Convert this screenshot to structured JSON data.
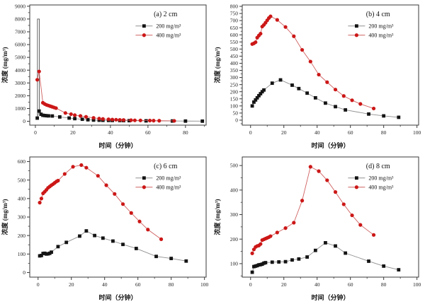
{
  "style": {
    "background": "#ffffff",
    "frame_color": "#3a3a3a",
    "text_color": "#1f1f1f",
    "series_200": {
      "marker": "square",
      "marker_color": "#141414",
      "line_color": "#8f8f8f"
    },
    "series_400": {
      "marker": "circle",
      "marker_color": "#cc1717",
      "line_color": "#d06060"
    }
  },
  "legend_labels": [
    "200 mg/m³",
    "400 mg/m³"
  ],
  "chart_data": [
    {
      "id": "a",
      "type": "line",
      "title": "(a) 2 cm",
      "xlabel": "时间（分钟）",
      "ylabel": "浓度 (mg/m³)",
      "xlim": [
        -3,
        91
      ],
      "ylim": [
        -300,
        9100
      ],
      "xticks": [
        0,
        20,
        40,
        60,
        80
      ],
      "yticks": [
        0,
        1000,
        2000,
        3000,
        4000,
        5000,
        6000,
        7000,
        8000,
        9000
      ],
      "legend_position": "upper-right",
      "grid": false,
      "extra_lines": [
        {
          "name": "initial-spike",
          "color": "#555555",
          "points": [
            [
              1.1,
              250
            ],
            [
              1.1,
              8000
            ],
            [
              2.1,
              8000
            ],
            [
              2.1,
              800
            ]
          ]
        }
      ],
      "series": [
        {
          "name": "200 mg/m³",
          "marker": "square",
          "points": [
            [
              1,
              250
            ],
            [
              2,
              800
            ],
            [
              3,
              550
            ],
            [
              4,
              470
            ],
            [
              5,
              450
            ],
            [
              6,
              435
            ],
            [
              7,
              425
            ],
            [
              9,
              415
            ],
            [
              13,
              340
            ],
            [
              18,
              255
            ],
            [
              21,
              210
            ],
            [
              25,
              160
            ],
            [
              28,
              120
            ],
            [
              31,
              95
            ],
            [
              34,
              85
            ],
            [
              36,
              78
            ],
            [
              39,
              70
            ],
            [
              41,
              65
            ],
            [
              45,
              60
            ],
            [
              47,
              55
            ],
            [
              50,
              50
            ],
            [
              59,
              35
            ],
            [
              73,
              25
            ],
            [
              80,
              18
            ],
            [
              89,
              12
            ]
          ]
        },
        {
          "name": "400 mg/m³",
          "marker": "circle",
          "points": [
            [
              1,
              3250
            ],
            [
              2,
              3900
            ],
            [
              4,
              1450
            ],
            [
              5,
              1350
            ],
            [
              6,
              1280
            ],
            [
              7,
              1230
            ],
            [
              8,
              1180
            ],
            [
              9,
              1130
            ],
            [
              10,
              1080
            ],
            [
              11,
              1030
            ],
            [
              16,
              650
            ],
            [
              19,
              560
            ],
            [
              21,
              480
            ],
            [
              24,
              420
            ],
            [
              27,
              350
            ],
            [
              31,
              270
            ],
            [
              34,
              215
            ],
            [
              36,
              185
            ],
            [
              39,
              160
            ],
            [
              41,
              140
            ],
            [
              43,
              125
            ],
            [
              45,
              110
            ],
            [
              47,
              100
            ],
            [
              51,
              85
            ],
            [
              53,
              78
            ],
            [
              56,
              68
            ],
            [
              61,
              58
            ],
            [
              63,
              52
            ],
            [
              66,
              45
            ],
            [
              74,
              35
            ]
          ]
        }
      ]
    },
    {
      "id": "b",
      "type": "line",
      "title": "(b) 4 cm",
      "xlabel": "时间（分钟）",
      "ylabel": "浓度 (mg/m³)",
      "xlim": [
        -5,
        101
      ],
      "ylim": [
        -35,
        810
      ],
      "xticks": [
        0,
        20,
        40,
        60,
        80,
        100
      ],
      "yticks": [
        0,
        50,
        100,
        150,
        200,
        250,
        300,
        350,
        400,
        450,
        500,
        550,
        600,
        650,
        700,
        750,
        800
      ],
      "legend_position": "upper-right",
      "grid": false,
      "series": [
        {
          "name": "200 mg/m³",
          "marker": "square",
          "points": [
            [
              1,
              100
            ],
            [
              2,
              127
            ],
            [
              3,
              142
            ],
            [
              4,
              157
            ],
            [
              5,
              172
            ],
            [
              6,
              186
            ],
            [
              7,
              200
            ],
            [
              8,
              212
            ],
            [
              13,
              260
            ],
            [
              18,
              283
            ],
            [
              25,
              246
            ],
            [
              29,
              222
            ],
            [
              34,
              190
            ],
            [
              39,
              157
            ],
            [
              45,
              120
            ],
            [
              51,
              95
            ],
            [
              57,
              72
            ],
            [
              71,
              43
            ],
            [
              80,
              30
            ],
            [
              89,
              20
            ]
          ]
        },
        {
          "name": "400 mg/m³",
          "marker": "circle",
          "points": [
            [
              1,
              535
            ],
            [
              2,
              540
            ],
            [
              3,
              548
            ],
            [
              4,
              580
            ],
            [
              5,
              595
            ],
            [
              6,
              608
            ],
            [
              7,
              658
            ],
            [
              8,
              670
            ],
            [
              9,
              685
            ],
            [
              10,
              702
            ],
            [
              11,
              718
            ],
            [
              12,
              730
            ],
            [
              16,
              705
            ],
            [
              21,
              655
            ],
            [
              26,
              590
            ],
            [
              31,
              494
            ],
            [
              36,
              412
            ],
            [
              41,
              320
            ],
            [
              46,
              267
            ],
            [
              51,
              215
            ],
            [
              56,
              170
            ],
            [
              61,
              140
            ],
            [
              66,
              114
            ],
            [
              74,
              82
            ]
          ]
        }
      ]
    },
    {
      "id": "c",
      "type": "line",
      "title": "(c) 6 cm",
      "xlabel": "时间（分钟）",
      "ylabel": "浓度 (mg/m³)",
      "xlim": [
        -5,
        101
      ],
      "ylim": [
        -25,
        625
      ],
      "xticks": [
        0,
        20,
        40,
        60,
        80,
        100
      ],
      "yticks": [
        0,
        100,
        200,
        300,
        400,
        500,
        600
      ],
      "legend_position": "upper-right",
      "grid": false,
      "series": [
        {
          "name": "200 mg/m³",
          "marker": "square",
          "points": [
            [
              1,
              90
            ],
            [
              2,
              92
            ],
            [
              3,
              103
            ],
            [
              4,
              104
            ],
            [
              5,
              100
            ],
            [
              6,
              101
            ],
            [
              7,
              104
            ],
            [
              8,
              110
            ],
            [
              12,
              140
            ],
            [
              17,
              163
            ],
            [
              25,
              197
            ],
            [
              29,
              225
            ],
            [
              34,
              200
            ],
            [
              39,
              186
            ],
            [
              45,
              170
            ],
            [
              51,
              152
            ],
            [
              59,
              130
            ],
            [
              71,
              87
            ],
            [
              80,
              76
            ],
            [
              89,
              62
            ]
          ]
        },
        {
          "name": "400 mg/m³",
          "marker": "circle",
          "points": [
            [
              1,
              378
            ],
            [
              2,
              400
            ],
            [
              3,
              428
            ],
            [
              4,
              437
            ],
            [
              5,
              447
            ],
            [
              6,
              458
            ],
            [
              7,
              465
            ],
            [
              8,
              472
            ],
            [
              9,
              478
            ],
            [
              10,
              485
            ],
            [
              11,
              492
            ],
            [
              12,
              497
            ],
            [
              16,
              533
            ],
            [
              21,
              572
            ],
            [
              26,
              581
            ],
            [
              29,
              567
            ],
            [
              36,
              523
            ],
            [
              41,
              472
            ],
            [
              46,
              425
            ],
            [
              51,
              370
            ],
            [
              56,
              322
            ],
            [
              61,
              276
            ],
            [
              66,
              232
            ],
            [
              74,
              180
            ]
          ]
        }
      ]
    },
    {
      "id": "d",
      "type": "line",
      "title": "(d) 8 cm",
      "xlabel": "时间（分钟）",
      "ylabel": "浓度 (mg/m³)",
      "xlim": [
        -5,
        101
      ],
      "ylim": [
        45,
        535
      ],
      "xticks": [
        0,
        20,
        40,
        60,
        80,
        100
      ],
      "yticks": [
        100,
        200,
        300,
        400,
        500
      ],
      "legend_position": "upper-right",
      "grid": false,
      "series": [
        {
          "name": "200 mg/m³",
          "marker": "square",
          "points": [
            [
              1,
              65
            ],
            [
              2,
              88
            ],
            [
              3,
              90
            ],
            [
              4,
              92
            ],
            [
              5,
              95
            ],
            [
              6,
              96
            ],
            [
              7,
              98
            ],
            [
              8,
              102
            ],
            [
              9,
              104
            ],
            [
              13,
              106
            ],
            [
              17,
              107
            ],
            [
              21,
              108
            ],
            [
              25,
              115
            ],
            [
              29,
              119
            ],
            [
              34,
              127
            ],
            [
              39,
              154
            ],
            [
              45,
              185
            ],
            [
              51,
              172
            ],
            [
              57,
              143
            ],
            [
              71,
              110
            ],
            [
              80,
              90
            ],
            [
              89,
              75
            ]
          ]
        },
        {
          "name": "400 mg/m³",
          "marker": "circle",
          "points": [
            [
              1,
              142
            ],
            [
              2,
              158
            ],
            [
              3,
              168
            ],
            [
              4,
              172
            ],
            [
              5,
              174
            ],
            [
              6,
              180
            ],
            [
              7,
              196
            ],
            [
              8,
              199
            ],
            [
              9,
              202
            ],
            [
              10,
              205
            ],
            [
              11,
              208
            ],
            [
              12,
              212
            ],
            [
              16,
              227
            ],
            [
              21,
              245
            ],
            [
              26,
              267
            ],
            [
              31,
              357
            ],
            [
              36,
              495
            ],
            [
              41,
              477
            ],
            [
              46,
              440
            ],
            [
              51,
              392
            ],
            [
              56,
              342
            ],
            [
              61,
              297
            ],
            [
              66,
              258
            ],
            [
              74,
              217
            ]
          ]
        }
      ]
    }
  ]
}
